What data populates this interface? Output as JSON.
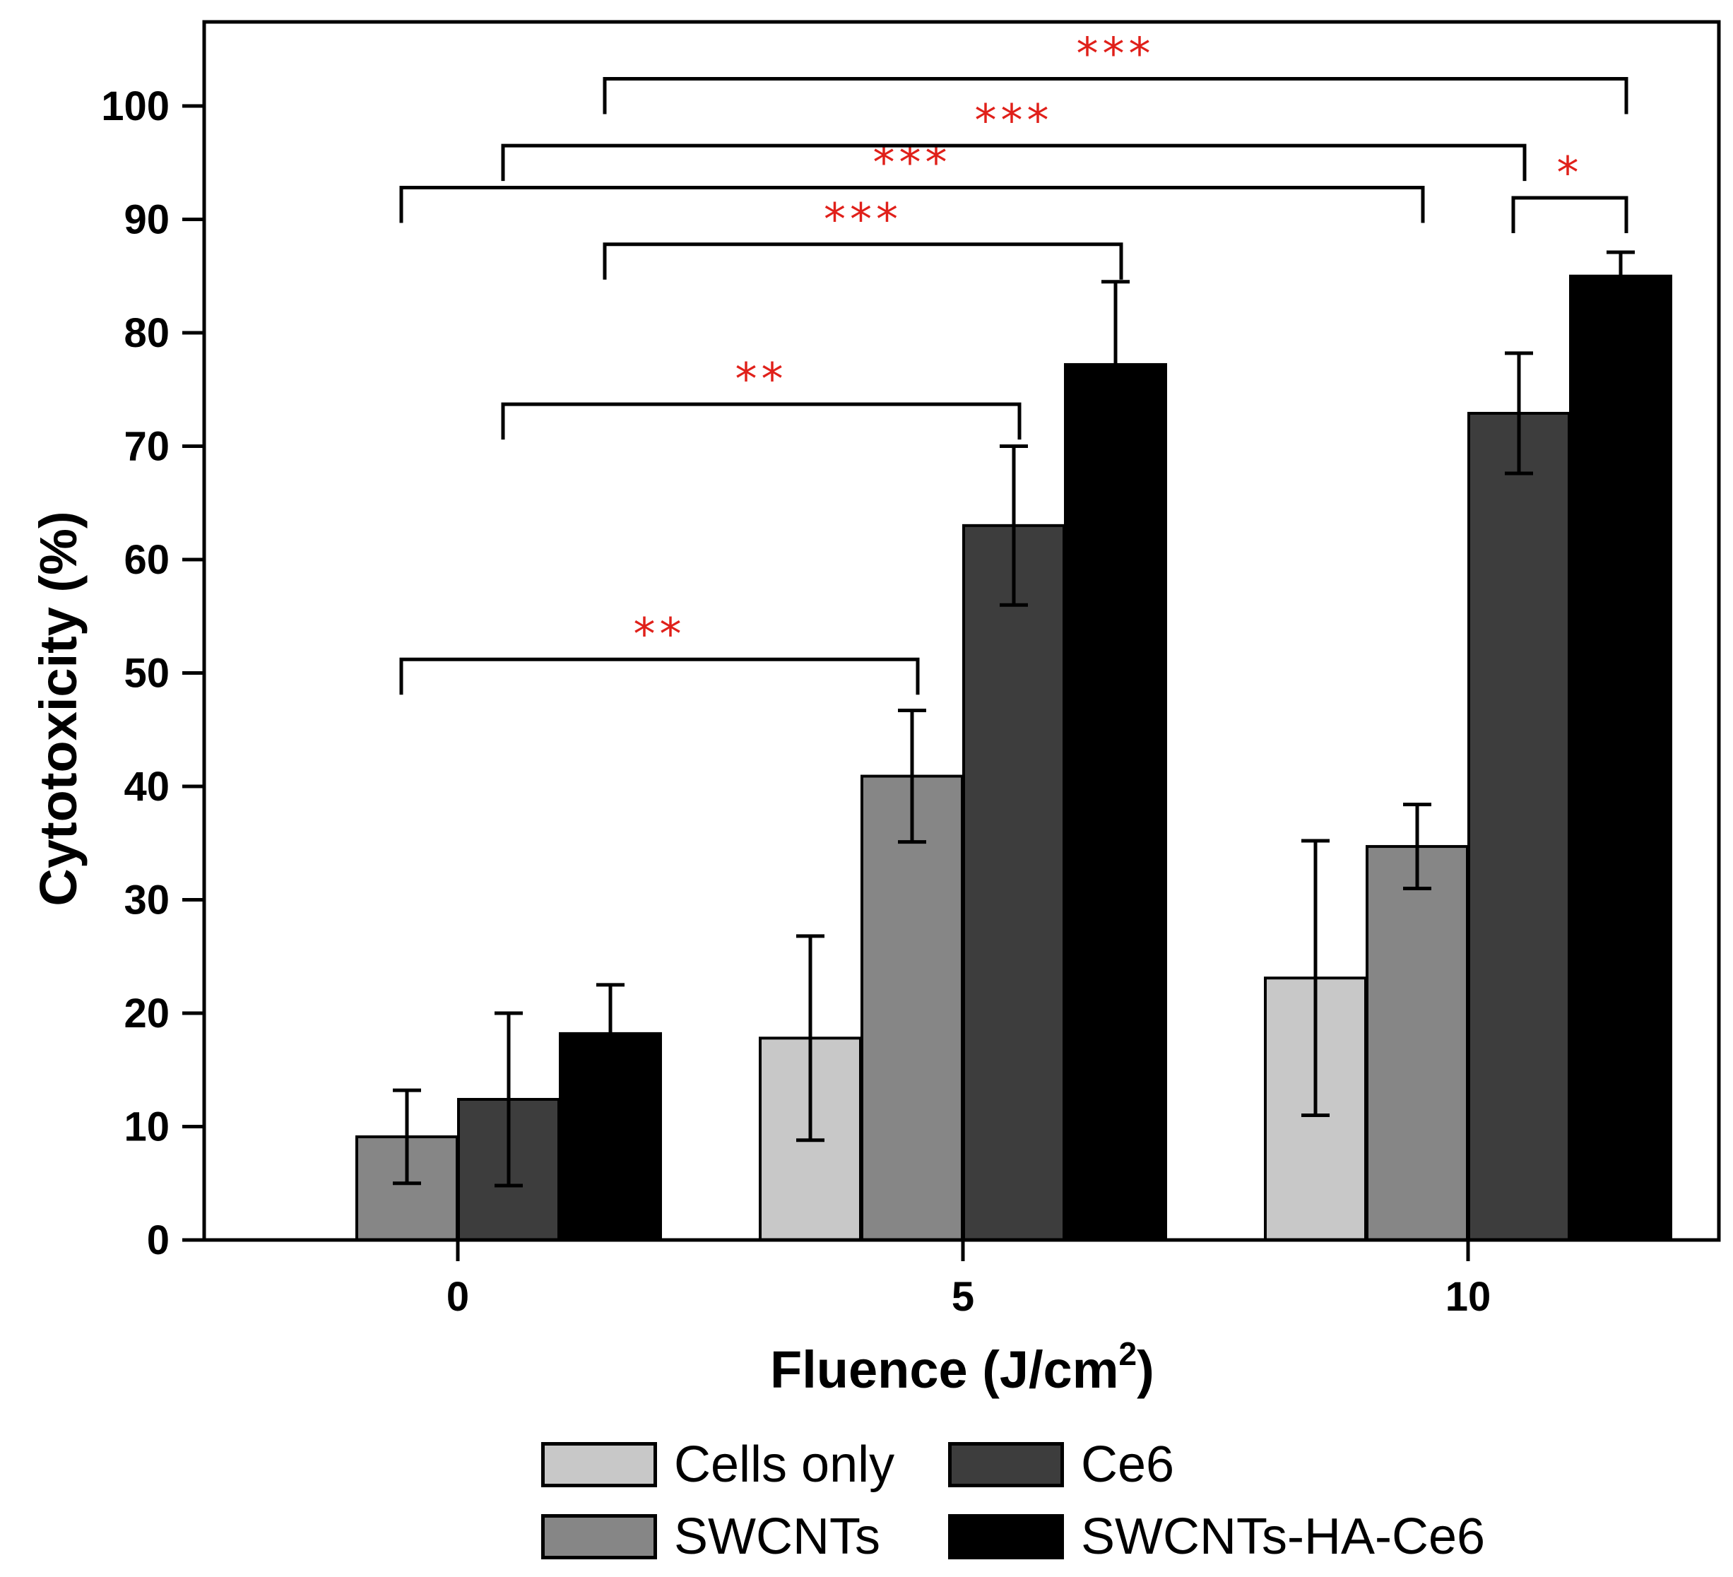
{
  "chart_data": {
    "type": "bar",
    "xlabel": "Fluence (J/cm",
    "xlabel_sup": "2",
    "xlabel_close": ")",
    "ylabel": "Cytotoxicity (%)",
    "ylim": [
      0,
      110
    ],
    "yticks": [
      0,
      10,
      20,
      30,
      40,
      50,
      60,
      70,
      80,
      90,
      100
    ],
    "categories": [
      "0",
      "5",
      "10"
    ],
    "series": [
      {
        "name": "Cells only",
        "color": "#c8c8c8",
        "values": [
          null,
          17.8,
          23.1
        ],
        "errors": [
          null,
          9.0,
          12.1
        ]
      },
      {
        "name": "SWCNTs",
        "color": "#868686",
        "values": [
          9.1,
          40.9,
          34.7
        ],
        "errors": [
          4.1,
          5.8,
          3.7
        ]
      },
      {
        "name": "Ce6",
        "color": "#3d3d3d",
        "values": [
          12.4,
          63.0,
          72.9
        ],
        "errors": [
          7.6,
          7.0,
          5.3
        ]
      },
      {
        "name": "SWCNTs-HA-Ce6",
        "color": "#000000",
        "values": [
          18.2,
          77.2,
          85.0
        ],
        "errors": [
          4.3,
          7.3,
          2.1
        ]
      }
    ],
    "significance": [
      {
        "from": [
          0,
          1
        ],
        "to": [
          1,
          1
        ],
        "y": 51.2,
        "label": "**"
      },
      {
        "from": [
          0,
          2
        ],
        "to": [
          1,
          2
        ],
        "y": 73.7,
        "label": "**"
      },
      {
        "from": [
          0,
          3
        ],
        "to": [
          1,
          3
        ],
        "y": 87.8,
        "label": "***"
      },
      {
        "from": [
          0,
          1
        ],
        "to": [
          2,
          1
        ],
        "y": 92.8,
        "label": "***"
      },
      {
        "from": [
          0,
          2
        ],
        "to": [
          2,
          2
        ],
        "y": 96.5,
        "label": "***"
      },
      {
        "from": [
          0,
          3
        ],
        "to": [
          2,
          3
        ],
        "y": 102.4,
        "label": "***"
      },
      {
        "from": [
          2,
          2
        ],
        "to": [
          2,
          3
        ],
        "y": 91.9,
        "label": "*"
      }
    ],
    "significance_color": "#e0201a"
  },
  "legend": {
    "items": [
      {
        "label": "Cells only",
        "color": "#c8c8c8"
      },
      {
        "label": "Ce6",
        "color": "#3d3d3d"
      },
      {
        "label": "SWCNTs",
        "color": "#868686"
      },
      {
        "label": "SWCNTs-HA-Ce6",
        "color": "#000000"
      }
    ]
  }
}
